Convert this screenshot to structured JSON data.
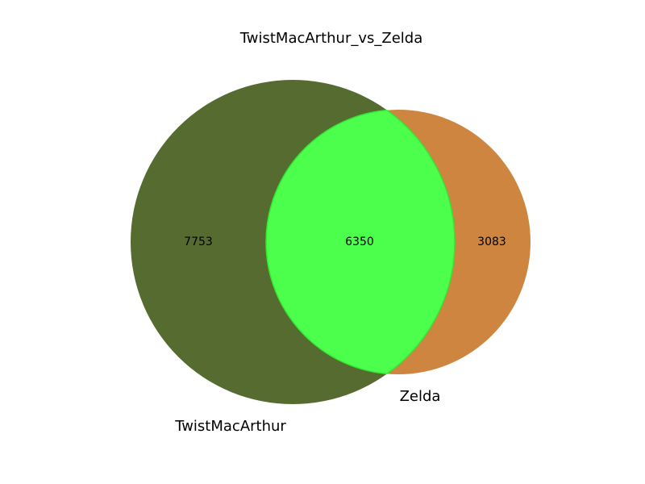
{
  "title": "TwistMacArthur_vs_Zelda",
  "sets": [
    {
      "name": "TwistMacArthur",
      "only_count": "7753",
      "color": "#556b2f"
    },
    {
      "name": "Zelda",
      "only_count": "3083",
      "color": "#cd853f"
    }
  ],
  "intersection": {
    "count": "6350",
    "color": "#4dff4d",
    "edge_color": "#33e633"
  }
}
